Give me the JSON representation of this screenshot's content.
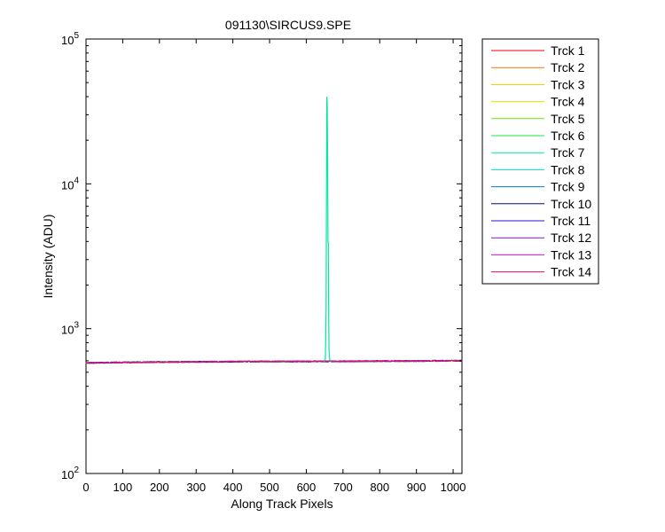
{
  "chart_data": {
    "type": "line",
    "title": "091130\\SIRCUS9.SPE",
    "xlabel": "Along Track Pixels",
    "ylabel": "Intensity (ADU)",
    "xlim": [
      0,
      1024
    ],
    "ylim": [
      100,
      100000
    ],
    "yscale": "log",
    "x_ticks": [
      0,
      100,
      200,
      300,
      400,
      500,
      600,
      700,
      800,
      900,
      1000
    ],
    "y_ticks": [
      {
        "value": 100,
        "base": "10",
        "exp": "2"
      },
      {
        "value": 1000,
        "base": "10",
        "exp": "3"
      },
      {
        "value": 10000,
        "base": "10",
        "exp": "4"
      },
      {
        "value": 100000,
        "base": "10",
        "exp": "5"
      }
    ],
    "grid": false,
    "legend_position": "outside-right-top",
    "baseline": {
      "x": [
        0,
        100,
        200,
        300,
        400,
        500,
        600,
        700,
        800,
        900,
        1000,
        1024
      ],
      "y": [
        580,
        585,
        588,
        590,
        592,
        593,
        594,
        595,
        597,
        598,
        600,
        600
      ]
    },
    "peak": {
      "series": "Trck 7",
      "x": [
        648,
        652,
        654,
        656,
        657,
        658,
        659,
        660,
        661,
        662,
        664,
        668
      ],
      "y": [
        596,
        620,
        1400,
        40000,
        36000,
        15000,
        4000,
        3900,
        1200,
        700,
        610,
        596
      ]
    },
    "series": [
      {
        "name": "Trck 1",
        "color": "#e8000b"
      },
      {
        "name": "Trck 2",
        "color": "#f07a00"
      },
      {
        "name": "Trck 3",
        "color": "#f0c400"
      },
      {
        "name": "Trck 4",
        "color": "#d4e600"
      },
      {
        "name": "Trck 5",
        "color": "#72e000"
      },
      {
        "name": "Trck 6",
        "color": "#1ee04a"
      },
      {
        "name": "Trck 7",
        "color": "#00e8a0"
      },
      {
        "name": "Trck 8",
        "color": "#00d8e0"
      },
      {
        "name": "Trck 9",
        "color": "#0078c8"
      },
      {
        "name": "Trck 10",
        "color": "#00126e"
      },
      {
        "name": "Trck 11",
        "color": "#2a10d0"
      },
      {
        "name": "Trck 12",
        "color": "#8a10d8"
      },
      {
        "name": "Trck 13",
        "color": "#d810c8"
      },
      {
        "name": "Trck 14",
        "color": "#e0105a"
      }
    ]
  }
}
